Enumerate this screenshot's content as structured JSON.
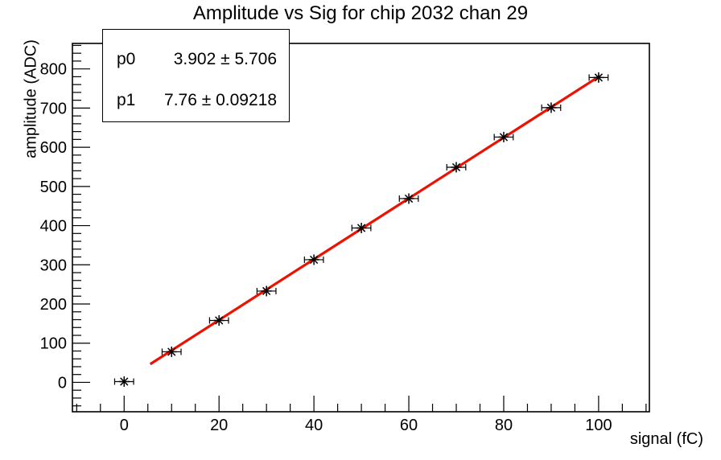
{
  "title": "Amplitude vs Sig for chip 2032 chan 29",
  "stats_box": {
    "rows": [
      {
        "name": "p0",
        "value": "3.902 ± 5.706"
      },
      {
        "name": "p1",
        "value": "7.76 ± 0.09218"
      }
    ]
  },
  "chart_data": {
    "type": "scatter",
    "title": "Amplitude vs Sig for chip 2032 chan 29",
    "xlabel": "signal (fC)",
    "ylabel": "amplitude (ADC)",
    "xlim": [
      -10.9,
      110.7
    ],
    "ylim": [
      -75,
      865
    ],
    "grid": false,
    "legend": "none",
    "x_major_ticks": [
      0,
      20,
      40,
      60,
      80,
      100
    ],
    "x_minor_step": 5,
    "y_major_ticks": [
      0,
      100,
      200,
      300,
      400,
      500,
      600,
      700,
      800
    ],
    "y_minor_step": 20,
    "points": {
      "x": [
        0,
        10,
        20,
        30,
        40,
        50,
        60,
        70,
        80,
        90,
        100
      ],
      "y": [
        2,
        78,
        158,
        233,
        313,
        394,
        469,
        549,
        626,
        701,
        778
      ],
      "xerr": 2,
      "marker": "asterisk",
      "color": "#000000"
    },
    "fit": {
      "model": "p0 + p1*x",
      "p0": 3.902,
      "p0_err": 5.706,
      "p1": 7.76,
      "p1_err": 0.09218,
      "x_range": [
        5.5,
        100.3
      ],
      "color": "#ee1100",
      "line_width": 3.2
    },
    "frame_color": "#000000",
    "background_color": "#ffffff"
  }
}
